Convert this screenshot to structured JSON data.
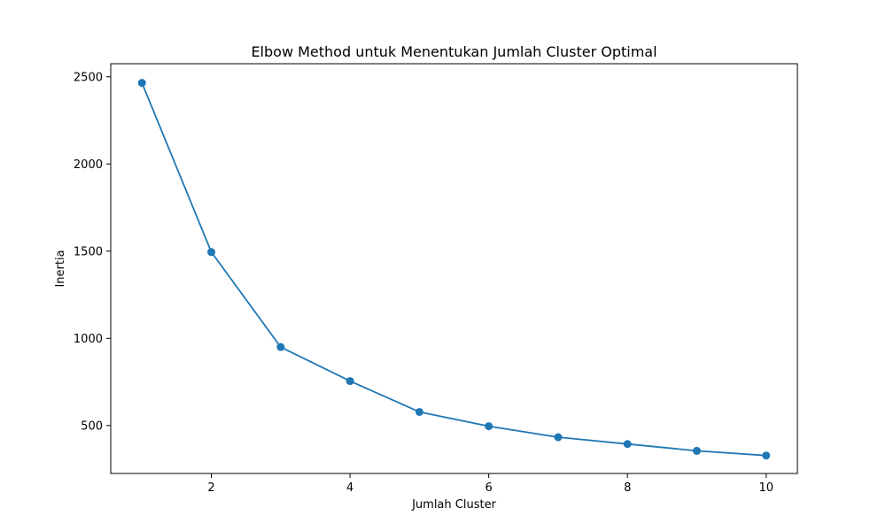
{
  "chart_data": {
    "type": "line",
    "title": "Elbow Method untuk Menentukan Jumlah Cluster Optimal",
    "xlabel": "Jumlah Cluster",
    "ylabel": "Inertia",
    "x": [
      1,
      2,
      3,
      4,
      5,
      6,
      7,
      8,
      9,
      10
    ],
    "series": [
      {
        "values": [
          2465,
          1495,
          950,
          755,
          578,
          496,
          433,
          394,
          355,
          328
        ],
        "color": "#1f77b4",
        "marker": "circle"
      }
    ],
    "xlim": [
      0.55,
      10.45
    ],
    "ylim": [
      225,
      2575
    ],
    "xticks": [
      2,
      4,
      6,
      8,
      10
    ],
    "yticks": [
      500,
      1000,
      1500,
      2000,
      2500
    ],
    "grid": false,
    "legend": "none"
  }
}
